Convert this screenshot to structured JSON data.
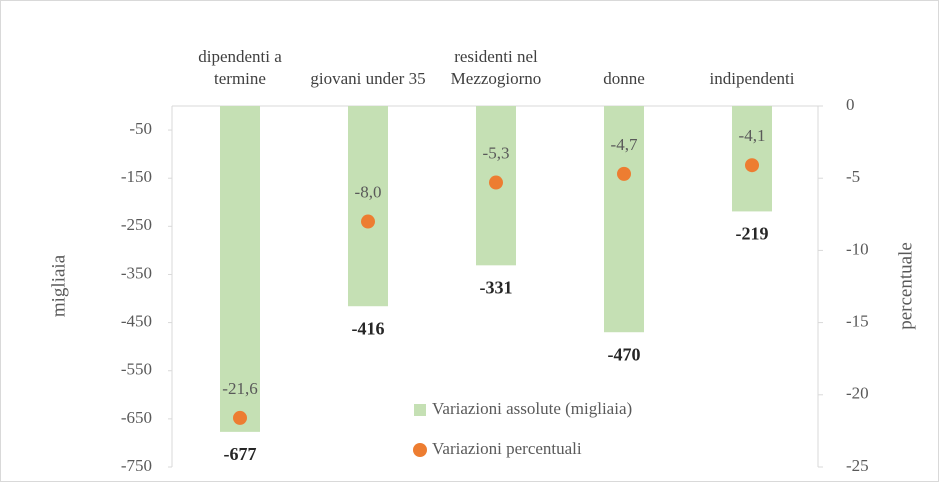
{
  "chart_data": {
    "type": "bar",
    "categories": [
      "dipendenti a termine",
      "giovani under 35",
      "residenti nel Mezzogiorno",
      "donne",
      "indipendenti"
    ],
    "series": [
      {
        "name": "Variazioni assolute (migliaia)",
        "type": "bar",
        "color": "#c5e0b4",
        "values": [
          -677,
          -416,
          -331,
          -470,
          -219
        ]
      },
      {
        "name": "Variazioni percentuali",
        "type": "scatter",
        "axis": "y2",
        "color": "#ed7d31",
        "values": [
          -21.6,
          -8.0,
          -5.3,
          -4.7,
          -4.1
        ],
        "value_labels": [
          "-21,6",
          "-8,0",
          "-5,3",
          "-4,7",
          "-4,1"
        ]
      }
    ],
    "ylabel": "migliaia",
    "y2label": "percentuale",
    "ylim": [
      -750,
      0
    ],
    "yticks": [
      -50,
      -150,
      -250,
      -350,
      -450,
      -550,
      -650,
      -750
    ],
    "y2lim": [
      -25,
      0
    ],
    "y2ticks": [
      0,
      -5,
      -10,
      -15,
      -20,
      -25
    ],
    "legend": "lower center"
  }
}
